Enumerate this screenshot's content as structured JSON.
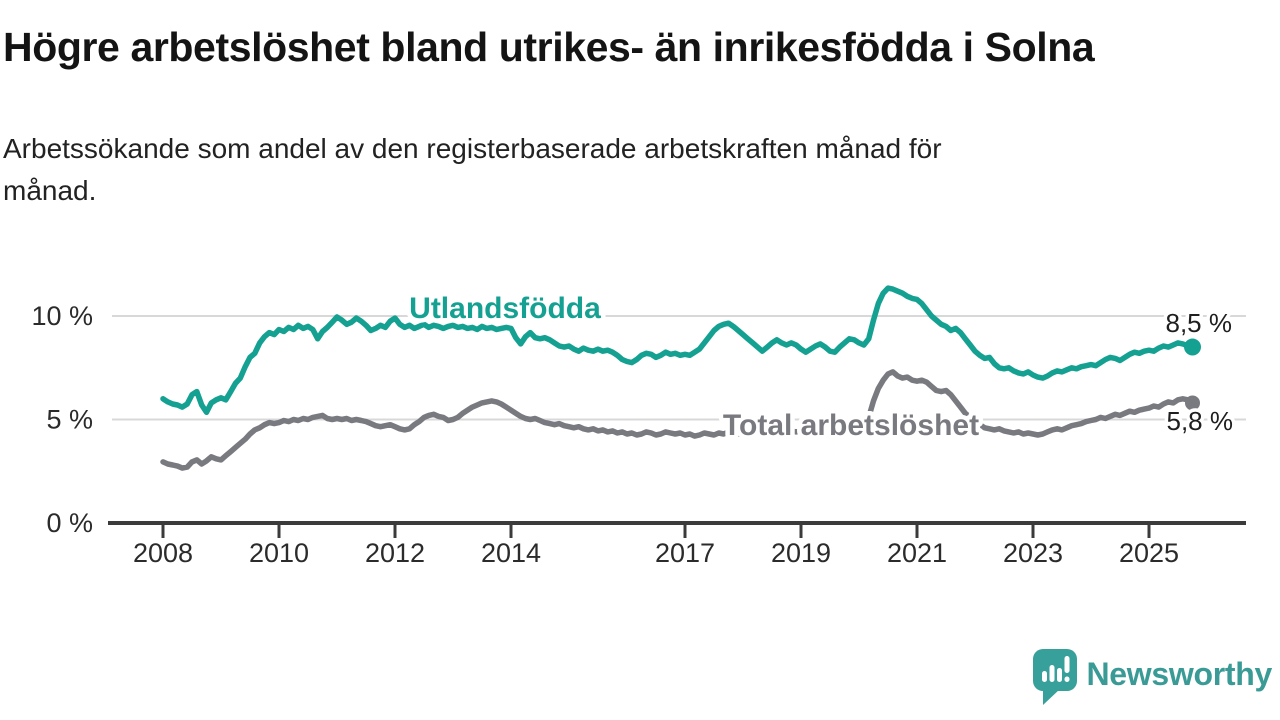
{
  "title": "Högre arbetslöshet bland utrikes- än inrikesfödda i Solna",
  "subtitle_lines": [
    "Arbetssökande som andel av den registerbaserade arbetskraften månad för",
    "månad."
  ],
  "logo": {
    "text": "Newsworthy",
    "color": "#3A9B96"
  },
  "colors": {
    "teal_line": "#14A192",
    "gray_line": "#797980",
    "grid": "#D8D8D8",
    "axis": "#3B3B3B",
    "tick_text": "#2B2B2B",
    "value_text": "#1F1F1F"
  },
  "chart_data": {
    "type": "line",
    "unit": "%",
    "frequency": "monthly",
    "x_start": {
      "year": 2008,
      "month": 1
    },
    "x_end": {
      "year": 2025,
      "month": 10
    },
    "ylim": [
      0,
      12
    ],
    "grid": "horizontal",
    "legend_position": "inline-labels",
    "yticks": [
      {
        "value": 0,
        "label": "0 %"
      },
      {
        "value": 5,
        "label": "5 %"
      },
      {
        "value": 10,
        "label": "10 %"
      }
    ],
    "xtick_years": [
      {
        "year": 2008,
        "label": "2008"
      },
      {
        "year": 2010,
        "label": "2010"
      },
      {
        "year": 2012,
        "label": "2012"
      },
      {
        "year": 2014,
        "label": "2014"
      },
      {
        "year": 2017,
        "label": "2017"
      },
      {
        "year": 2019,
        "label": "2019"
      },
      {
        "year": 2021,
        "label": "2021"
      },
      {
        "year": 2023,
        "label": "2023"
      },
      {
        "year": 2025,
        "label": "2025"
      }
    ],
    "series": [
      {
        "name": "Utlandsfödda",
        "color": "#14A192",
        "end_value": 8.5,
        "end_label": "8,5 %",
        "values": [
          6.0,
          5.85,
          5.75,
          5.7,
          5.6,
          5.75,
          6.2,
          6.35,
          5.7,
          5.35,
          5.8,
          5.95,
          6.05,
          5.95,
          6.35,
          6.75,
          7.0,
          7.55,
          8.0,
          8.2,
          8.7,
          9.0,
          9.2,
          9.1,
          9.35,
          9.25,
          9.45,
          9.35,
          9.55,
          9.4,
          9.5,
          9.35,
          8.9,
          9.25,
          9.45,
          9.7,
          9.95,
          9.8,
          9.6,
          9.7,
          9.9,
          9.75,
          9.55,
          9.3,
          9.4,
          9.55,
          9.45,
          9.75,
          9.9,
          9.6,
          9.45,
          9.55,
          9.4,
          9.5,
          9.6,
          9.45,
          9.55,
          9.5,
          9.4,
          9.5,
          9.55,
          9.45,
          9.5,
          9.4,
          9.45,
          9.35,
          9.5,
          9.4,
          9.45,
          9.35,
          9.4,
          9.45,
          9.4,
          8.95,
          8.65,
          9.0,
          9.2,
          8.95,
          8.9,
          8.95,
          8.85,
          8.7,
          8.55,
          8.5,
          8.55,
          8.4,
          8.3,
          8.45,
          8.35,
          8.3,
          8.4,
          8.3,
          8.35,
          8.25,
          8.1,
          7.9,
          7.8,
          7.75,
          7.9,
          8.1,
          8.2,
          8.15,
          8.0,
          8.1,
          8.25,
          8.15,
          8.2,
          8.1,
          8.15,
          8.1,
          8.25,
          8.4,
          8.7,
          9.0,
          9.3,
          9.5,
          9.6,
          9.65,
          9.5,
          9.3,
          9.1,
          8.9,
          8.7,
          8.5,
          8.3,
          8.5,
          8.7,
          8.85,
          8.7,
          8.6,
          8.7,
          8.6,
          8.4,
          8.25,
          8.4,
          8.55,
          8.65,
          8.5,
          8.3,
          8.25,
          8.5,
          8.7,
          8.9,
          8.85,
          8.7,
          8.6,
          8.9,
          9.8,
          10.6,
          11.1,
          11.35,
          11.3,
          11.2,
          11.1,
          10.95,
          10.85,
          10.8,
          10.6,
          10.3,
          10.0,
          9.8,
          9.6,
          9.5,
          9.3,
          9.4,
          9.2,
          8.9,
          8.6,
          8.3,
          8.1,
          7.95,
          8.0,
          7.7,
          7.5,
          7.45,
          7.5,
          7.35,
          7.25,
          7.2,
          7.3,
          7.15,
          7.05,
          7.0,
          7.1,
          7.25,
          7.35,
          7.3,
          7.4,
          7.5,
          7.45,
          7.55,
          7.6,
          7.65,
          7.6,
          7.75,
          7.9,
          8.0,
          7.95,
          7.85,
          8.0,
          8.15,
          8.25,
          8.2,
          8.3,
          8.35,
          8.3,
          8.45,
          8.55,
          8.5,
          8.6,
          8.7,
          8.65,
          8.55,
          8.5
        ]
      },
      {
        "name": "Total arbetslöshet",
        "color": "#797980",
        "end_value": 5.8,
        "end_label": "5,8 %",
        "values": [
          2.95,
          2.85,
          2.8,
          2.75,
          2.65,
          2.7,
          2.95,
          3.05,
          2.85,
          3.0,
          3.2,
          3.1,
          3.05,
          3.25,
          3.45,
          3.65,
          3.85,
          4.05,
          4.3,
          4.5,
          4.6,
          4.75,
          4.85,
          4.8,
          4.85,
          4.95,
          4.9,
          5.0,
          4.95,
          5.05,
          5.0,
          5.1,
          5.15,
          5.2,
          5.05,
          5.0,
          5.05,
          5.0,
          5.05,
          4.95,
          5.0,
          4.95,
          4.9,
          4.8,
          4.7,
          4.65,
          4.7,
          4.75,
          4.65,
          4.55,
          4.5,
          4.55,
          4.75,
          4.9,
          5.1,
          5.2,
          5.25,
          5.15,
          5.1,
          4.95,
          5.0,
          5.1,
          5.3,
          5.45,
          5.6,
          5.7,
          5.8,
          5.85,
          5.9,
          5.85,
          5.75,
          5.6,
          5.45,
          5.3,
          5.15,
          5.05,
          5.0,
          5.05,
          4.95,
          4.85,
          4.8,
          4.75,
          4.8,
          4.7,
          4.65,
          4.6,
          4.65,
          4.55,
          4.5,
          4.55,
          4.45,
          4.5,
          4.4,
          4.45,
          4.35,
          4.4,
          4.3,
          4.35,
          4.25,
          4.3,
          4.4,
          4.35,
          4.25,
          4.3,
          4.4,
          4.35,
          4.3,
          4.35,
          4.25,
          4.3,
          4.2,
          4.25,
          4.35,
          4.3,
          4.25,
          4.35,
          4.3,
          4.4,
          4.35,
          4.3,
          4.35,
          4.3,
          4.4,
          4.35,
          4.45,
          4.4,
          4.35,
          4.45,
          4.4,
          4.5,
          4.45,
          4.4,
          4.45,
          4.4,
          4.5,
          4.45,
          4.55,
          4.5,
          4.45,
          4.55,
          4.6,
          4.55,
          4.65,
          4.6,
          4.7,
          4.75,
          5.1,
          5.9,
          6.5,
          6.9,
          7.2,
          7.3,
          7.1,
          7.0,
          7.05,
          6.9,
          6.85,
          6.9,
          6.8,
          6.6,
          6.4,
          6.35,
          6.4,
          6.2,
          5.9,
          5.6,
          5.3,
          5.1,
          4.9,
          4.75,
          4.6,
          4.55,
          4.5,
          4.55,
          4.45,
          4.4,
          4.35,
          4.4,
          4.3,
          4.35,
          4.3,
          4.25,
          4.3,
          4.4,
          4.5,
          4.55,
          4.5,
          4.6,
          4.7,
          4.75,
          4.8,
          4.9,
          4.95,
          5.0,
          5.1,
          5.05,
          5.15,
          5.25,
          5.2,
          5.3,
          5.4,
          5.35,
          5.45,
          5.5,
          5.55,
          5.65,
          5.6,
          5.75,
          5.85,
          5.8,
          5.95,
          6.0,
          5.95,
          5.8
        ]
      }
    ]
  }
}
